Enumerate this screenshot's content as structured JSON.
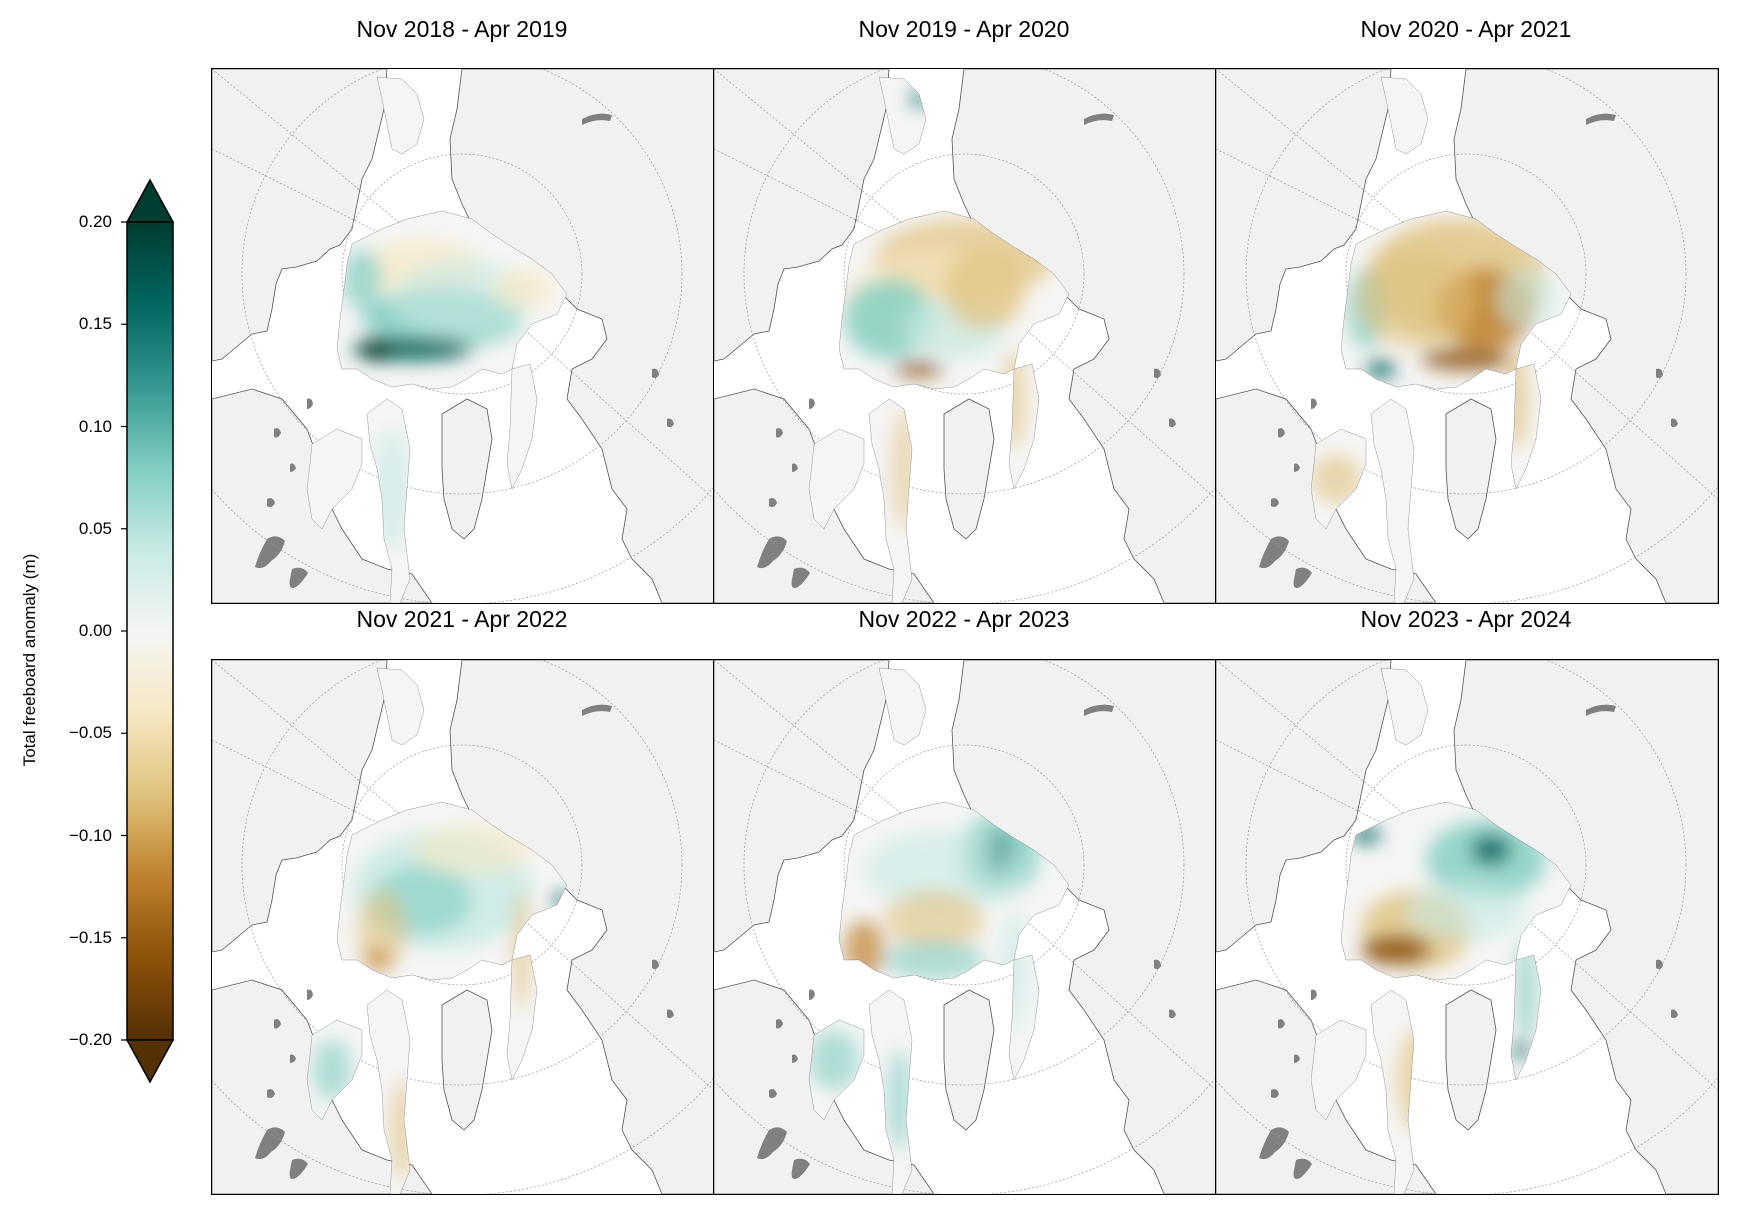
{
  "colorbar": {
    "label": "Total freeboard anomaly (m)",
    "ticks": [
      "0.20",
      "0.15",
      "0.10",
      "0.05",
      "0.00",
      "−0.05",
      "−0.10",
      "−0.15",
      "−0.20"
    ],
    "tick_values": [
      0.2,
      0.15,
      0.1,
      0.05,
      0.0,
      -0.05,
      -0.1,
      -0.15,
      -0.2
    ],
    "range": [
      -0.2,
      0.2
    ],
    "extend": "both",
    "colormap": "BrBG",
    "colors": [
      "#543005",
      "#8c510a",
      "#bf812d",
      "#dfc27d",
      "#f6e8c3",
      "#f5f5f5",
      "#c7eae5",
      "#80cdc1",
      "#35978f",
      "#01665e",
      "#003c30"
    ]
  },
  "panels": [
    {
      "title": "Nov 2018 - Apr 2019",
      "pattern": "green-atlantic-edge"
    },
    {
      "title": "Nov 2019 - Apr 2020",
      "pattern": "brown-center-green-beaufort"
    },
    {
      "title": "Nov 2020 - Apr 2021",
      "pattern": "brown-widespread"
    },
    {
      "title": "Nov 2021 - Apr 2022",
      "pattern": "green-central"
    },
    {
      "title": "Nov 2022 - Apr 2023",
      "pattern": "green-north-brown-canadian"
    },
    {
      "title": "Nov 2023 - Apr 2024",
      "pattern": "brown-canadian-green-siberian"
    }
  ],
  "map_colors": {
    "land": "#f1f1f1",
    "coast": "#555555",
    "lakes": "#808080",
    "ocean": "#ffffff",
    "gridlines": "#999999"
  }
}
